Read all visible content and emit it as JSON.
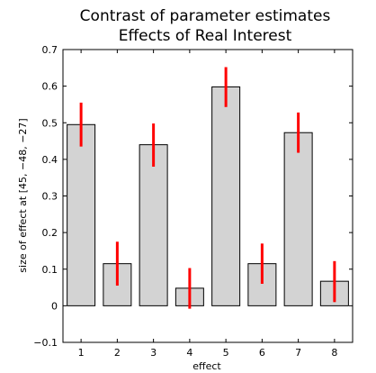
{
  "chart_data": {
    "type": "bar",
    "title": [
      "Contrast of parameter estimates",
      "Effects of Real Interest"
    ],
    "xlabel": "effect",
    "ylabel": "size of effect at [45, −48, −27]",
    "categories": [
      "1",
      "2",
      "3",
      "4",
      "5",
      "6",
      "7",
      "8"
    ],
    "values": [
      0.495,
      0.115,
      0.44,
      0.048,
      0.598,
      0.115,
      0.473,
      0.067
    ],
    "error_low": [
      0.435,
      0.055,
      0.38,
      -0.008,
      0.543,
      0.06,
      0.418,
      0.01
    ],
    "error_high": [
      0.555,
      0.175,
      0.498,
      0.103,
      0.652,
      0.17,
      0.528,
      0.122
    ],
    "ylim": [
      -0.1,
      0.7
    ],
    "yticks": [
      "−0.1",
      "0",
      "0.1",
      "0.2",
      "0.3",
      "0.4",
      "0.5",
      "0.6",
      "0.7"
    ],
    "ytick_values": [
      -0.1,
      0,
      0.1,
      0.2,
      0.3,
      0.4,
      0.5,
      0.6,
      0.7
    ],
    "grid": false,
    "bar_color": "#d3d3d3",
    "error_color": "#ff0000"
  }
}
